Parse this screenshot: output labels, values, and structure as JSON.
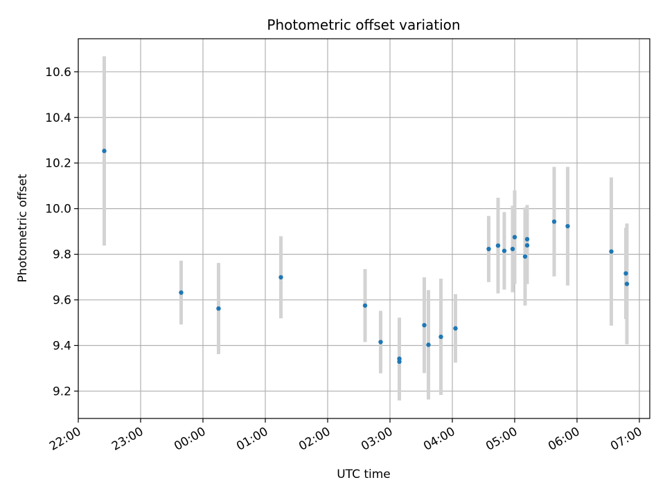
{
  "chart_data": {
    "type": "scatter",
    "title": "Photometric offset variation",
    "xlabel": "UTC time",
    "ylabel": "Photometric offset",
    "x_tick_labels": [
      "22:00",
      "23:00",
      "00:00",
      "01:00",
      "02:00",
      "03:00",
      "04:00",
      "05:00",
      "06:00",
      "07:00"
    ],
    "y_tick_labels": [
      "9.2",
      "9.4",
      "9.6",
      "9.8",
      "10.0",
      "10.2",
      "10.4",
      "10.6"
    ],
    "y_ticks": [
      9.2,
      9.4,
      9.6,
      9.8,
      10.0,
      10.2,
      10.4,
      10.6
    ],
    "xlim": [
      "22:00",
      "07:10"
    ],
    "ylim": [
      9.08,
      10.745
    ],
    "grid": true,
    "point_color": "#1f77b4",
    "errorbar_color": "#d3d3d3",
    "points": [
      {
        "t": "22:25",
        "y": 10.253,
        "err": 0.415
      },
      {
        "t": "23:39",
        "y": 9.632,
        "err": 0.14
      },
      {
        "t": "00:15",
        "y": 9.562,
        "err": 0.2
      },
      {
        "t": "01:15",
        "y": 9.699,
        "err": 0.18
      },
      {
        "t": "02:36",
        "y": 9.575,
        "err": 0.16
      },
      {
        "t": "02:51",
        "y": 9.415,
        "err": 0.137
      },
      {
        "t": "03:09",
        "y": 9.329,
        "err": 0.17
      },
      {
        "t": "03:09",
        "y": 9.342,
        "err": 0.18
      },
      {
        "t": "03:33",
        "y": 9.489,
        "err": 0.21
      },
      {
        "t": "03:37",
        "y": 9.403,
        "err": 0.24
      },
      {
        "t": "03:49",
        "y": 9.438,
        "err": 0.255
      },
      {
        "t": "04:03",
        "y": 9.475,
        "err": 0.15
      },
      {
        "t": "04:35",
        "y": 9.823,
        "err": 0.145
      },
      {
        "t": "04:44",
        "y": 9.838,
        "err": 0.21
      },
      {
        "t": "04:50",
        "y": 9.815,
        "err": 0.17
      },
      {
        "t": "04:58",
        "y": 9.823,
        "err": 0.19
      },
      {
        "t": "05:00",
        "y": 9.875,
        "err": 0.205
      },
      {
        "t": "05:10",
        "y": 9.79,
        "err": 0.215
      },
      {
        "t": "05:12",
        "y": 9.866,
        "err": 0.15
      },
      {
        "t": "05:12",
        "y": 9.839,
        "err": 0.17
      },
      {
        "t": "05:38",
        "y": 9.943,
        "err": 0.24
      },
      {
        "t": "05:51",
        "y": 9.923,
        "err": 0.26
      },
      {
        "t": "06:33",
        "y": 9.812,
        "err": 0.325
      },
      {
        "t": "06:47",
        "y": 9.716,
        "err": 0.2
      },
      {
        "t": "06:48",
        "y": 9.67,
        "err": 0.265
      }
    ]
  }
}
